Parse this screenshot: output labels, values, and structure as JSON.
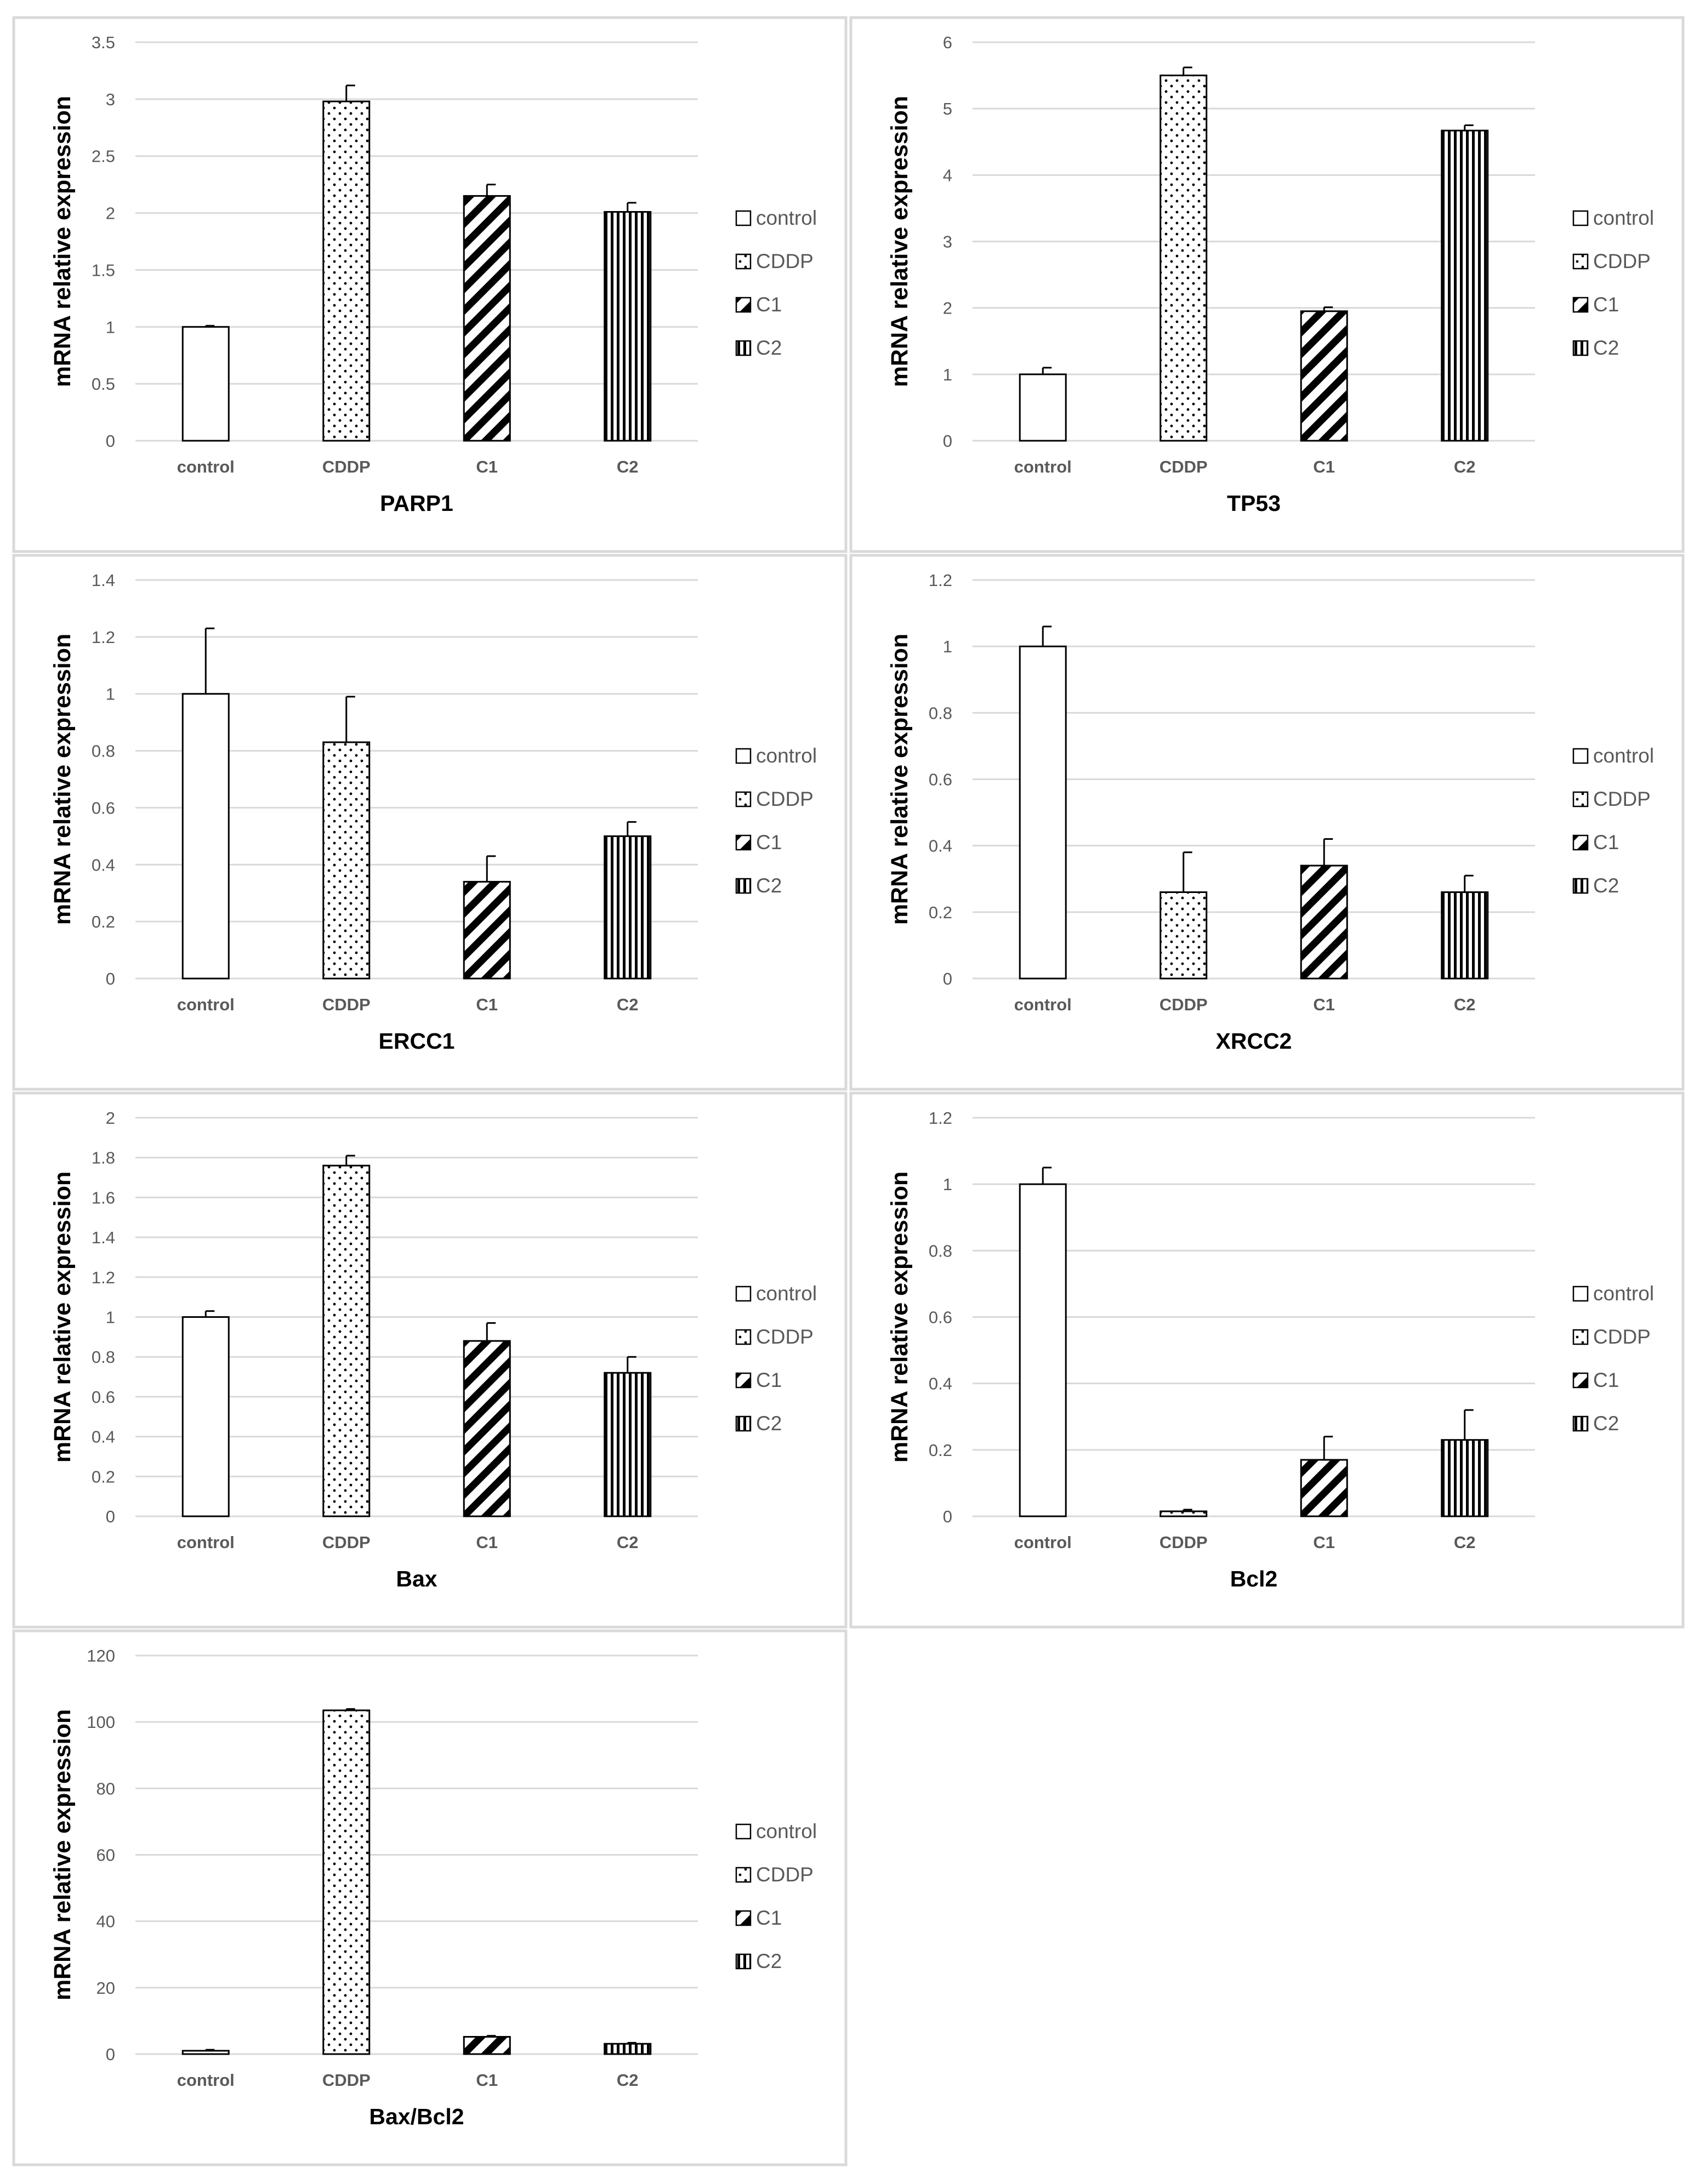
{
  "figure": {
    "legend_entries": [
      "control",
      "CDDP",
      "C1",
      "C2"
    ],
    "bar_patterns": [
      "blank",
      "dots",
      "diagonal",
      "vertical"
    ],
    "text_color": "#595959",
    "title_color": "#000000",
    "grid_color": "#d9d9d9",
    "bar_stroke_color": "#000000",
    "panel_border_color": "#d9d9d9"
  },
  "chart_data": [
    {
      "type": "bar",
      "title": "PARP1",
      "ylabel": "mRNA relative expression",
      "xlabel": "",
      "categories": [
        "control",
        "CDDP",
        "C1",
        "C2"
      ],
      "values": [
        1.0,
        2.98,
        2.15,
        2.01
      ],
      "errors": [
        0.01,
        0.14,
        0.1,
        0.08
      ],
      "ylim": [
        0,
        3.5
      ],
      "yticks": [
        0,
        0.5,
        1,
        1.5,
        2,
        2.5,
        3,
        3.5
      ],
      "ytick_labels": [
        "0",
        "0.5",
        "1",
        "1.5",
        "2",
        "2.5",
        "3",
        "3.5"
      ],
      "grid": true,
      "legend_position": "right"
    },
    {
      "type": "bar",
      "title": "TP53",
      "ylabel": "mRNA relative expression",
      "xlabel": "",
      "categories": [
        "control",
        "CDDP",
        "C1",
        "C2"
      ],
      "values": [
        1.0,
        5.5,
        1.95,
        4.67
      ],
      "errors": [
        0.1,
        0.12,
        0.06,
        0.08
      ],
      "ylim": [
        0,
        6
      ],
      "yticks": [
        0,
        1,
        2,
        3,
        4,
        5,
        6
      ],
      "ytick_labels": [
        "0",
        "1",
        "2",
        "3",
        "4",
        "5",
        "6"
      ],
      "grid": true,
      "legend_position": "right"
    },
    {
      "type": "bar",
      "title": "ERCC1",
      "ylabel": "mRNA relative expression",
      "xlabel": "",
      "categories": [
        "control",
        "CDDP",
        "C1",
        "C2"
      ],
      "values": [
        1.0,
        0.83,
        0.34,
        0.5
      ],
      "errors": [
        0.23,
        0.16,
        0.09,
        0.05
      ],
      "ylim": [
        0,
        1.4
      ],
      "yticks": [
        0,
        0.2,
        0.4,
        0.6,
        0.8,
        1,
        1.2,
        1.4
      ],
      "ytick_labels": [
        "0",
        "0.2",
        "0.4",
        "0.6",
        "0.8",
        "1",
        "1.2",
        "1.4"
      ],
      "grid": true,
      "legend_position": "right"
    },
    {
      "type": "bar",
      "title": "XRCC2",
      "ylabel": "mRNA relative expression",
      "xlabel": "",
      "categories": [
        "control",
        "CDDP",
        "C1",
        "C2"
      ],
      "values": [
        1.0,
        0.26,
        0.34,
        0.26
      ],
      "errors": [
        0.06,
        0.12,
        0.08,
        0.05
      ],
      "ylim": [
        0,
        1.2
      ],
      "yticks": [
        0,
        0.2,
        0.4,
        0.6,
        0.8,
        1,
        1.2
      ],
      "ytick_labels": [
        "0",
        "0.2",
        "0.4",
        "0.6",
        "0.8",
        "1",
        "1.2"
      ],
      "grid": true,
      "legend_position": "right"
    },
    {
      "type": "bar",
      "title": "Bax",
      "ylabel": "mRNA relative expression",
      "xlabel": "",
      "categories": [
        "control",
        "CDDP",
        "C1",
        "C2"
      ],
      "values": [
        1.0,
        1.76,
        0.88,
        0.72
      ],
      "errors": [
        0.03,
        0.05,
        0.09,
        0.08
      ],
      "ylim": [
        0,
        2
      ],
      "yticks": [
        0,
        0.2,
        0.4,
        0.6,
        0.8,
        1,
        1.2,
        1.4,
        1.6,
        1.8,
        2
      ],
      "ytick_labels": [
        "0",
        "0.2",
        "0.4",
        "0.6",
        "0.8",
        "1",
        "1.2",
        "1.4",
        "1.6",
        "1.8",
        "2"
      ],
      "grid": true,
      "legend_position": "right"
    },
    {
      "type": "bar",
      "title": "Bcl2",
      "ylabel": "mRNA relative expression",
      "xlabel": "",
      "categories": [
        "control",
        "CDDP",
        "C1",
        "C2"
      ],
      "values": [
        1.0,
        0.015,
        0.17,
        0.23
      ],
      "errors": [
        0.05,
        0.005,
        0.07,
        0.09
      ],
      "ylim": [
        0,
        1.2
      ],
      "yticks": [
        0,
        0.2,
        0.4,
        0.6,
        0.8,
        1,
        1.2
      ],
      "ytick_labels": [
        "0",
        "0.2",
        "0.4",
        "0.6",
        "0.8",
        "1",
        "1.2"
      ],
      "grid": true,
      "legend_position": "right"
    },
    {
      "type": "bar",
      "title": "Bax/Bcl2",
      "ylabel": "mRNA relative expression",
      "xlabel": "",
      "categories": [
        "control",
        "CDDP",
        "C1",
        "C2"
      ],
      "values": [
        1.0,
        103.5,
        5.2,
        3.1
      ],
      "errors": [
        0.3,
        0.4,
        0.3,
        0.3
      ],
      "ylim": [
        0,
        120
      ],
      "yticks": [
        0,
        20,
        40,
        60,
        80,
        100,
        120
      ],
      "ytick_labels": [
        "0",
        "20",
        "40",
        "60",
        "80",
        "100",
        "120"
      ],
      "grid": true,
      "legend_position": "right"
    }
  ]
}
